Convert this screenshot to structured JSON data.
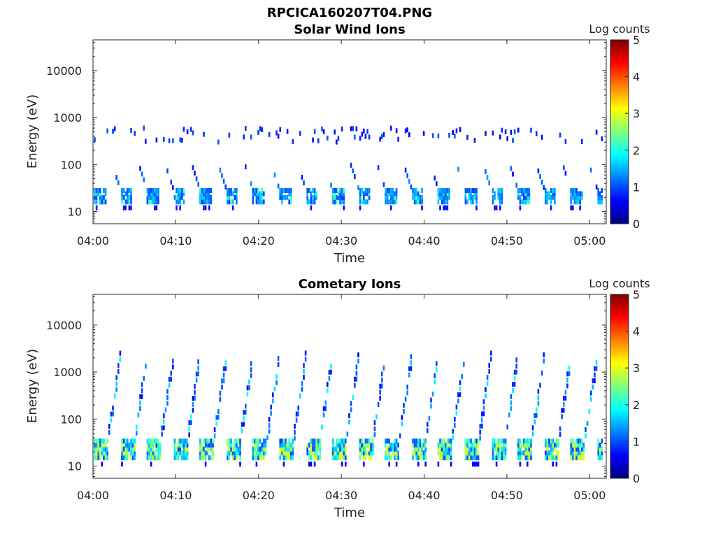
{
  "figure_title": "RPCICA160207T04.PNG",
  "colors": {
    "colormap": [
      "#00007f",
      "#0000ff",
      "#007fff",
      "#00ffff",
      "#7fff7f",
      "#ffff00",
      "#ff7f00",
      "#ff0000",
      "#7f0000"
    ],
    "background": "#ffffff"
  },
  "chart_data": [
    {
      "type": "heatmap",
      "title": "Solar Wind Ions",
      "xlabel": "Time",
      "ylabel": "Energy (eV)",
      "x_ticks": [
        "04:00",
        "04:10",
        "04:20",
        "04:30",
        "04:40",
        "04:50",
        "05:00"
      ],
      "y_ticks": [
        "10",
        "100",
        "1000",
        "10000"
      ],
      "y_scale": "log",
      "ylim": [
        5.5,
        45000
      ],
      "xlim_minutes": [
        0,
        62
      ],
      "colorbar": {
        "label": "Log counts",
        "ticks": [
          "0",
          "1",
          "2",
          "3",
          "4",
          "5"
        ],
        "range": [
          0,
          5
        ]
      },
      "sweep_period_minutes": 3.2,
      "lower_band": {
        "energy_range_eV": [
          14,
          40
        ],
        "typical_log_counts": 1.3,
        "max_log_counts": 2.2
      },
      "upper_band": {
        "energy_range_eV": [
          250,
          700
        ],
        "typical_log_counts": 0.7
      }
    },
    {
      "type": "heatmap",
      "title": "Cometary Ions",
      "xlabel": "Time",
      "ylabel": "Energy (eV)",
      "x_ticks": [
        "04:00",
        "04:10",
        "04:20",
        "04:30",
        "04:40",
        "04:50",
        "05:00"
      ],
      "y_ticks": [
        "10",
        "100",
        "1000",
        "10000"
      ],
      "y_scale": "log",
      "ylim": [
        5.5,
        45000
      ],
      "xlim_minutes": [
        0,
        62
      ],
      "colorbar": {
        "label": "Log counts",
        "ticks": [
          "0",
          "1",
          "2",
          "3",
          "4",
          "5"
        ],
        "range": [
          0,
          5
        ]
      },
      "sweep_period_minutes": 3.2,
      "low_energy_band": {
        "energy_range_eV": [
          14,
          40
        ],
        "typical_log_counts": 2.4,
        "max_log_counts": 2.9
      },
      "dispersion_arcs": {
        "energy_range_eV": [
          40,
          2500
        ],
        "typical_log_counts": 1.3
      }
    }
  ]
}
